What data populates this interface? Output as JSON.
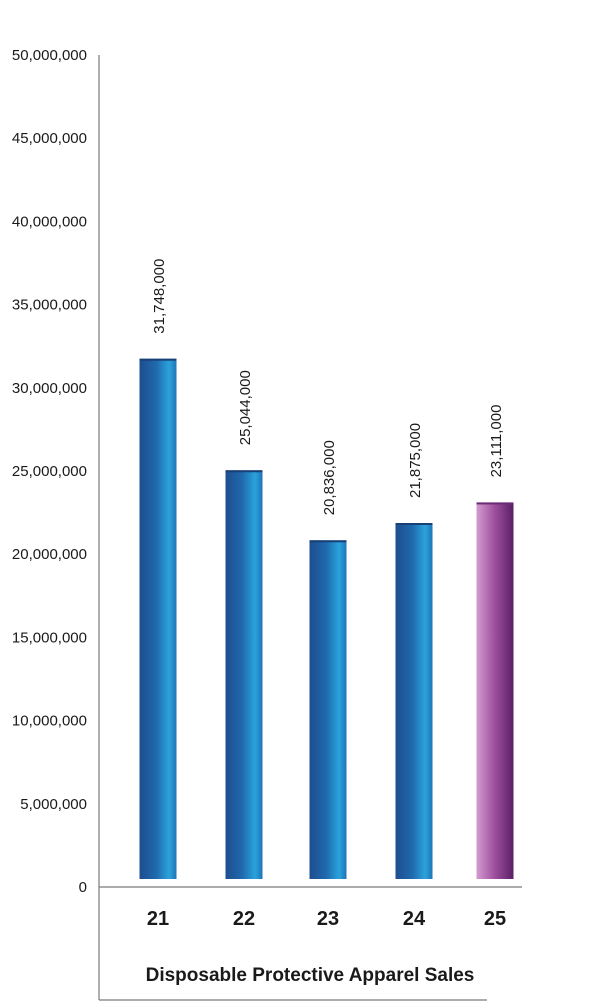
{
  "chart_data": {
    "type": "bar",
    "title": "Disposable Protective Apparel Sales",
    "xlabel": "",
    "ylabel": "",
    "categories": [
      "21",
      "22",
      "23",
      "24",
      "25"
    ],
    "values": [
      31748000,
      25044000,
      20836000,
      21875000,
      23111000
    ],
    "data_labels": [
      "31,748,000",
      "25,044,000",
      "20,836,000",
      "21,875,000",
      "23,111,000"
    ],
    "ylim": [
      0,
      50000000
    ],
    "yticks": [
      0,
      5000000,
      10000000,
      15000000,
      20000000,
      25000000,
      30000000,
      35000000,
      40000000,
      45000000,
      50000000
    ],
    "ytick_labels": [
      "0",
      "5,000,000",
      "10,000,000",
      "15,000,000",
      "20,000,000",
      "25,000,000",
      "30,000,000",
      "35,000,000",
      "40,000,000",
      "45,000,000",
      "50,000,000"
    ],
    "grid": false,
    "legend": "none",
    "colors": {
      "blue_dark": "#1d4e8f",
      "blue_light": "#2aa3dc",
      "purple_dark": "#5a1f66",
      "purple_light": "#d59ad0",
      "last_bar_highlight": "purple"
    }
  }
}
